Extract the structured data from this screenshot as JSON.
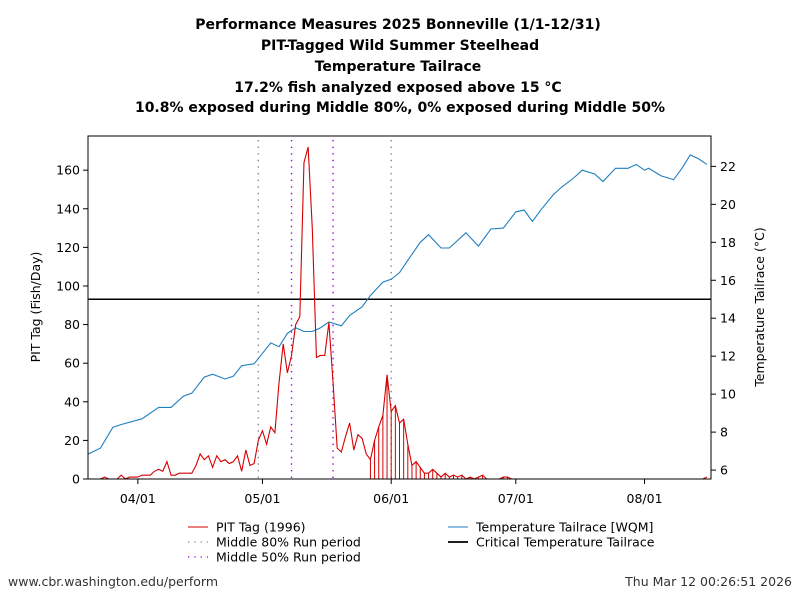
{
  "titles": [
    "Performance Measures 2025 Bonneville (1/1-12/31)",
    "PIT-Tagged Wild Summer Steelhead",
    "Temperature Tailrace",
    "17.2% fish analyzed exposed above 15 °C",
    "10.8% exposed during Middle 80%, 0% exposed during Middle 50%"
  ],
  "footer": {
    "left": "www.cbr.washington.edu/perform",
    "right": "Thu Mar 12 00:26:51 2026"
  },
  "chart_data": {
    "type": "line",
    "xlabel": "",
    "ylabel": "PIT Tag (Fish/Day)",
    "y2label": "Temperature Tailrace (°C)",
    "xlim": [
      "03/20",
      "08/17"
    ],
    "ylim": [
      0,
      177.7
    ],
    "y2lim": [
      5.53,
      23.6
    ],
    "xticks": [
      "04/01",
      "05/01",
      "06/01",
      "07/01",
      "08/01"
    ],
    "yticks": [
      0,
      20,
      40,
      60,
      80,
      100,
      120,
      140,
      160
    ],
    "y2ticks": [
      6,
      8,
      10,
      12,
      14,
      16,
      18,
      20,
      22
    ],
    "grid": false,
    "legend_placement": "bottom",
    "colors": {
      "pit": "#d40000",
      "temp": "#1f7fbf",
      "critical": "#000000",
      "mid80": "#888888",
      "mid50": "#9a00e6"
    },
    "legend": [
      {
        "label": "PIT Tag (1996)",
        "style": "line",
        "color": "#d40000"
      },
      {
        "label": "Middle 80% Run period",
        "style": "dotted",
        "color": "#888888"
      },
      {
        "label": "Middle 50% Run period",
        "style": "dotted",
        "color": "#9a00e6"
      },
      {
        "label": "Temperature Tailrace [WQM]",
        "style": "line",
        "color": "#1f7fbf"
      },
      {
        "label": "Critical Temperature Tailrace",
        "style": "thick",
        "color": "#000000"
      }
    ],
    "critical_temperature": 15,
    "middle_80_period": [
      "04/30",
      "06/01"
    ],
    "middle_50_period": [
      "05/08",
      "05/18"
    ],
    "pit_tag": [
      [
        "03/20",
        0
      ],
      [
        "03/21",
        0
      ],
      [
        "03/22",
        0
      ],
      [
        "03/23",
        0
      ],
      [
        "03/24",
        1
      ],
      [
        "03/25",
        0
      ],
      [
        "03/26",
        0
      ],
      [
        "03/27",
        0
      ],
      [
        "03/28",
        2
      ],
      [
        "03/29",
        0
      ],
      [
        "03/30",
        1
      ],
      [
        "03/31",
        1
      ],
      [
        "04/01",
        1
      ],
      [
        "04/02",
        2
      ],
      [
        "04/03",
        2
      ],
      [
        "04/04",
        2
      ],
      [
        "04/05",
        4
      ],
      [
        "04/06",
        5
      ],
      [
        "04/07",
        4
      ],
      [
        "04/08",
        9
      ],
      [
        "04/09",
        2
      ],
      [
        "04/10",
        2
      ],
      [
        "04/11",
        3
      ],
      [
        "04/12",
        3
      ],
      [
        "04/13",
        3
      ],
      [
        "04/14",
        3
      ],
      [
        "04/15",
        7
      ],
      [
        "04/16",
        13
      ],
      [
        "04/17",
        10
      ],
      [
        "04/18",
        12
      ],
      [
        "04/19",
        6
      ],
      [
        "04/20",
        12
      ],
      [
        "04/21",
        9
      ],
      [
        "04/22",
        10
      ],
      [
        "04/23",
        8
      ],
      [
        "04/24",
        9
      ],
      [
        "04/25",
        12
      ],
      [
        "04/26",
        4
      ],
      [
        "04/27",
        15
      ],
      [
        "04/28",
        7
      ],
      [
        "04/29",
        8
      ],
      [
        "04/30",
        20
      ],
      [
        "05/01",
        25
      ],
      [
        "05/02",
        18
      ],
      [
        "05/03",
        27
      ],
      [
        "05/04",
        24
      ],
      [
        "05/05",
        50
      ],
      [
        "05/06",
        70
      ],
      [
        "05/07",
        55
      ],
      [
        "05/08",
        64
      ],
      [
        "05/09",
        80
      ],
      [
        "05/10",
        84
      ],
      [
        "05/11",
        164
      ],
      [
        "05/12",
        172
      ],
      [
        "05/13",
        130
      ],
      [
        "05/14",
        63
      ],
      [
        "05/15",
        64
      ],
      [
        "05/16",
        64
      ],
      [
        "05/17",
        81
      ],
      [
        "05/18",
        50
      ],
      [
        "05/19",
        16
      ],
      [
        "05/20",
        14
      ],
      [
        "05/21",
        22
      ],
      [
        "05/22",
        29
      ],
      [
        "05/23",
        15
      ],
      [
        "05/24",
        23
      ],
      [
        "05/25",
        21
      ],
      [
        "05/26",
        13
      ],
      [
        "05/27",
        10
      ],
      [
        "05/28",
        20
      ],
      [
        "05/29",
        27
      ],
      [
        "05/30",
        33
      ],
      [
        "05/31",
        54
      ],
      [
        "06/01",
        35
      ],
      [
        "06/02",
        38
      ],
      [
        "06/03",
        29
      ],
      [
        "06/04",
        31
      ],
      [
        "06/05",
        18
      ],
      [
        "06/06",
        7
      ],
      [
        "06/07",
        9
      ],
      [
        "06/08",
        6
      ],
      [
        "06/09",
        3
      ],
      [
        "06/10",
        3
      ],
      [
        "06/11",
        5
      ],
      [
        "06/12",
        3
      ],
      [
        "06/13",
        1
      ],
      [
        "06/14",
        3
      ],
      [
        "06/15",
        1
      ],
      [
        "06/16",
        2
      ],
      [
        "06/17",
        1
      ],
      [
        "06/18",
        2
      ],
      [
        "06/19",
        0
      ],
      [
        "06/20",
        1
      ],
      [
        "06/21",
        0
      ],
      [
        "06/22",
        1
      ],
      [
        "06/23",
        2
      ],
      [
        "06/24",
        0
      ],
      [
        "06/25",
        0
      ],
      [
        "06/26",
        0
      ],
      [
        "06/27",
        0
      ],
      [
        "06/28",
        1
      ],
      [
        "06/29",
        1
      ],
      [
        "06/30",
        0
      ],
      [
        "07/01",
        0
      ],
      [
        "08/15",
        0
      ],
      [
        "08/16",
        1
      ]
    ],
    "temperature": [
      [
        "03/20",
        6.84
      ],
      [
        "03/23",
        7.16
      ],
      [
        "03/26",
        8.26
      ],
      [
        "03/28",
        8.4
      ],
      [
        "04/02",
        8.7
      ],
      [
        "04/06",
        9.3
      ],
      [
        "04/09",
        9.3
      ],
      [
        "04/12",
        9.9
      ],
      [
        "04/14",
        10.05
      ],
      [
        "04/17",
        10.9
      ],
      [
        "04/19",
        11.05
      ],
      [
        "04/22",
        10.8
      ],
      [
        "04/24",
        10.95
      ],
      [
        "04/26",
        11.5
      ],
      [
        "04/29",
        11.6
      ],
      [
        "05/03",
        12.7
      ],
      [
        "05/05",
        12.5
      ],
      [
        "05/07",
        13.2
      ],
      [
        "05/09",
        13.5
      ],
      [
        "05/11",
        13.3
      ],
      [
        "05/13",
        13.3
      ],
      [
        "05/15",
        13.5
      ],
      [
        "05/17",
        13.8
      ],
      [
        "05/20",
        13.6
      ],
      [
        "05/22",
        14.15
      ],
      [
        "05/25",
        14.6
      ],
      [
        "05/27",
        15.2
      ],
      [
        "05/30",
        15.9
      ],
      [
        "06/01",
        16.05
      ],
      [
        "06/03",
        16.4
      ],
      [
        "06/05",
        17.05
      ],
      [
        "06/08",
        18.0
      ],
      [
        "06/10",
        18.4
      ],
      [
        "06/13",
        17.7
      ],
      [
        "06/15",
        17.7
      ],
      [
        "06/19",
        18.5
      ],
      [
        "06/22",
        17.8
      ],
      [
        "06/25",
        18.7
      ],
      [
        "06/28",
        18.75
      ],
      [
        "07/01",
        19.6
      ],
      [
        "07/03",
        19.7
      ],
      [
        "07/05",
        19.1
      ],
      [
        "07/07",
        19.7
      ],
      [
        "07/10",
        20.5
      ],
      [
        "07/12",
        20.9
      ],
      [
        "07/15",
        21.4
      ],
      [
        "07/17",
        21.8
      ],
      [
        "07/20",
        21.6
      ],
      [
        "07/22",
        21.2
      ],
      [
        "07/25",
        21.9
      ],
      [
        "07/28",
        21.9
      ],
      [
        "07/30",
        22.1
      ],
      [
        "08/01",
        21.8
      ],
      [
        "08/02",
        21.9
      ],
      [
        "08/05",
        21.5
      ],
      [
        "08/08",
        21.3
      ],
      [
        "08/10",
        21.9
      ],
      [
        "08/12",
        22.6
      ],
      [
        "08/14",
        22.4
      ],
      [
        "08/16",
        22.1
      ]
    ]
  }
}
